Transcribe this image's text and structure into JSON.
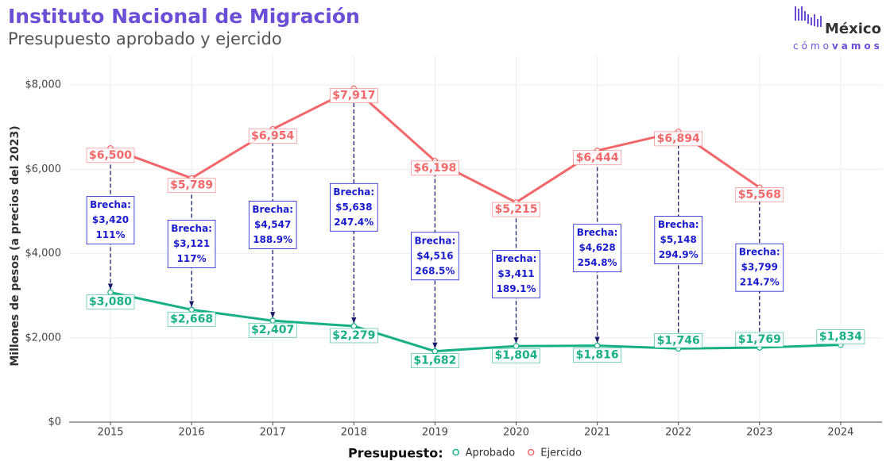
{
  "chart_data": {
    "type": "line",
    "title": "Instituto Nacional de Migración",
    "subtitle": "Presupuesto aprobado y ejercido",
    "logo": [
      "México",
      "cómo",
      "vamos"
    ],
    "y_label": "Millones de pesos (a precios del 2023)",
    "legend_title": "Presupuesto:",
    "legend_position": "bottom",
    "grid": true,
    "categories": [
      "2015",
      "2016",
      "2017",
      "2018",
      "2019",
      "2020",
      "2021",
      "2022",
      "2023",
      "2024"
    ],
    "series": [
      {
        "name": "Aprobado",
        "color": "#17b085",
        "values": [
          3080,
          2668,
          2407,
          2279,
          1682,
          1804,
          1816,
          1746,
          1769,
          1834
        ],
        "value_labels": [
          "$3,080",
          "$2,668",
          "$2,407",
          "$2,279",
          "$1,682",
          "$1,804",
          "$1,816",
          "$1,746",
          "$1,769",
          "$1,834"
        ]
      },
      {
        "name": "Ejercido",
        "color": "#f2686a",
        "values": [
          6500,
          5789,
          6954,
          7917,
          6198,
          5215,
          6444,
          6894,
          5568,
          null
        ],
        "value_labels": [
          "$6,500",
          "$5,789",
          "$6,954",
          "$7,917",
          "$6,198",
          "$5,215",
          "$6,444",
          "$6,894",
          "$5,568",
          null
        ]
      }
    ],
    "gaps": {
      "label": "Brecha:",
      "color": "#1a1acc",
      "values": [
        3420,
        3121,
        4547,
        5638,
        4516,
        3411,
        4628,
        5148,
        3799
      ],
      "value_labels": [
        "$3,420",
        "$3,121",
        "$4,547",
        "$5,638",
        "$4,516",
        "$3,411",
        "$4,628",
        "$5,148",
        "$3,799"
      ],
      "percents": [
        111,
        117,
        188.9,
        247.4,
        268.5,
        189.1,
        254.8,
        294.9,
        214.7
      ],
      "percent_labels": [
        "111%",
        "117%",
        "188.9%",
        "247.4%",
        "268.5%",
        "189.1%",
        "254.8%",
        "294.9%",
        "214.7%"
      ]
    },
    "ylim": [
      0,
      8700
    ],
    "yticks": [
      {
        "value": 0,
        "label": "$0"
      },
      {
        "value": 2000,
        "label": "$2,000"
      },
      {
        "value": 4000,
        "label": "$4,000"
      },
      {
        "value": 6000,
        "label": "$6,000"
      },
      {
        "value": 8000,
        "label": "$8,000"
      }
    ]
  }
}
